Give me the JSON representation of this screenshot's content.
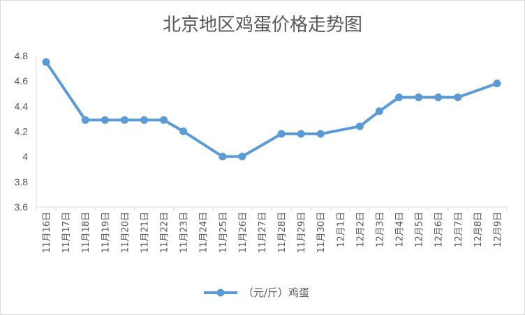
{
  "chart_data": {
    "type": "line",
    "title": "北京地区鸡蛋价格走势图",
    "xlabel": "",
    "ylabel": "",
    "ylim": [
      3.6,
      4.8
    ],
    "yticks": [
      "3.6",
      "3.8",
      "4",
      "4.2",
      "4.4",
      "4.6",
      "4.8"
    ],
    "grid": false,
    "legend_position": "bottom",
    "categories": [
      "11月16日",
      "11月17日",
      "11月18日",
      "11月19日",
      "11月20日",
      "11月21日",
      "11月22日",
      "11月23日",
      "11月24日",
      "11月25日",
      "11月26日",
      "11月27日",
      "11月28日",
      "11月29日",
      "11月30日",
      "12月1日",
      "12月2日",
      "12月3日",
      "12月4日",
      "12月5日",
      "12月6日",
      "12月7日",
      "12月8日",
      "12月9日"
    ],
    "series": [
      {
        "name": "（元/斤）鸡蛋",
        "color": "#5b9bd5",
        "values": [
          4.75,
          null,
          4.29,
          4.29,
          4.29,
          4.29,
          4.29,
          4.2,
          null,
          4.0,
          4.0,
          null,
          4.18,
          4.18,
          4.18,
          null,
          4.24,
          4.36,
          4.47,
          4.47,
          4.47,
          4.47,
          null,
          4.58
        ]
      }
    ]
  }
}
